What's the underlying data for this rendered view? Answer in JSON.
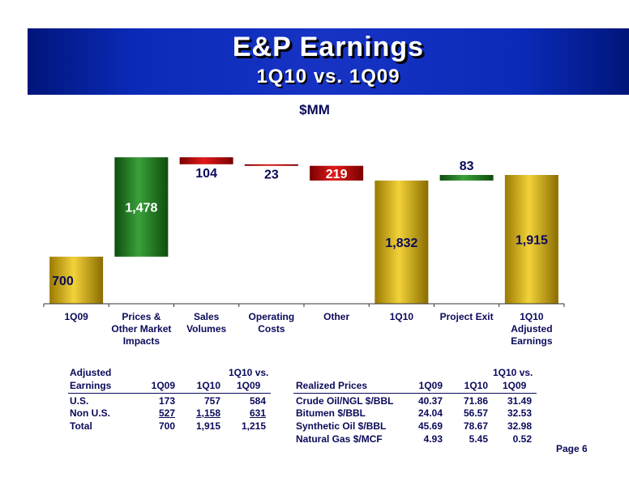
{
  "title": "E&P Earnings",
  "subtitle": "1Q10 vs. 1Q09",
  "units": "$MM",
  "chart_data": {
    "type": "waterfall",
    "categories": [
      "1Q09",
      "Prices & Other Market Impacts",
      "Sales Volumes",
      "Operating Costs",
      "Other",
      "1Q10",
      "Project Exit",
      "1Q10 Adjusted Earnings"
    ],
    "category_labels": [
      [
        "1Q09"
      ],
      [
        "Prices &",
        "Other Market",
        "Impacts"
      ],
      [
        "Sales",
        "Volumes"
      ],
      [
        "Operating",
        "Costs"
      ],
      [
        "Other"
      ],
      [
        "1Q10"
      ],
      [
        "Project Exit"
      ],
      [
        "1Q10",
        "Adjusted",
        "Earnings"
      ]
    ],
    "value_labels": [
      "700",
      "1,478",
      "104",
      "23",
      "219",
      "1,832",
      "83",
      "1,915"
    ],
    "steps": [
      {
        "kind": "total",
        "value": 700
      },
      {
        "kind": "increase",
        "value": 1478
      },
      {
        "kind": "decrease",
        "value": 104
      },
      {
        "kind": "decrease",
        "value": 23
      },
      {
        "kind": "decrease",
        "value": 219
      },
      {
        "kind": "total",
        "value": 1832
      },
      {
        "kind": "increase",
        "value": 83
      },
      {
        "kind": "total",
        "value": 1915
      }
    ],
    "colors": {
      "total": "#c9a400",
      "increase": "#1d7a1d",
      "decrease": "#b30000"
    }
  },
  "earnings_table": {
    "headers": [
      "Adjusted\nEarnings",
      "1Q09",
      "1Q10",
      "1Q10 vs.\n1Q09"
    ],
    "header_line1": [
      "Adjusted",
      "",
      "",
      "1Q10 vs."
    ],
    "header_line2": [
      "Earnings",
      "1Q09",
      "1Q10",
      "1Q09"
    ],
    "rows": [
      [
        "U.S.",
        "173",
        "757",
        "584"
      ],
      [
        "Non U.S.",
        "527",
        "1,158",
        "631"
      ],
      [
        "Total",
        "700",
        "1,915",
        "1,215"
      ]
    ]
  },
  "prices_table": {
    "header_line1": [
      "",
      "",
      "",
      "1Q10 vs."
    ],
    "header_line2": [
      "Realized Prices",
      "1Q09",
      "1Q10",
      "1Q09"
    ],
    "rows": [
      [
        "Crude Oil/NGL $/BBL",
        "40.37",
        "71.86",
        "31.49"
      ],
      [
        "Bitumen $/BBL",
        "24.04",
        "56.57",
        "32.53"
      ],
      [
        "Synthetic Oil $/BBL",
        "45.69",
        "78.67",
        "32.98"
      ],
      [
        "Natural Gas $/MCF",
        "4.93",
        "5.45",
        "0.52"
      ]
    ]
  },
  "page_label": "Page 6"
}
